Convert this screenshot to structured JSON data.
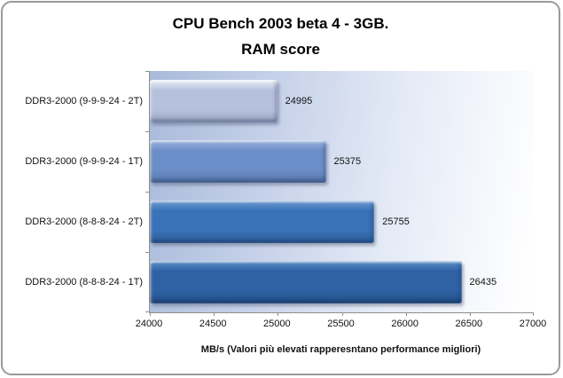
{
  "chart_data": {
    "type": "bar",
    "orientation": "horizontal",
    "title_line1": "CPU Bench 2003 beta 4 - 3GB.",
    "title_line2": "RAM score",
    "categories": [
      "DDR3-2000 (9-9-9-24 - 2T)",
      "DDR3-2000 (9-9-9-24 - 1T)",
      "DDR3-2000 (8-8-8-24 - 2T)",
      "DDR3-2000 (8-8-8-24 - 1T)"
    ],
    "values": [
      24995,
      25375,
      25755,
      26435
    ],
    "bar_styles": [
      {
        "top": "#eef1f8",
        "mid": "#b6c2dd",
        "bottom": "#97a5c4"
      },
      {
        "top": "#9db4dd",
        "mid": "#6c8ec8",
        "bottom": "#5474a8"
      },
      {
        "top": "#6f9bd1",
        "mid": "#3a72b8",
        "bottom": "#2b5c97"
      },
      {
        "top": "#5c8ec6",
        "mid": "#2f62a4",
        "bottom": "#224e85"
      }
    ],
    "xlabel": "MB/s (Valori più  elevati rapperesntano performance migliori)",
    "xlim": [
      24000,
      27000
    ],
    "xticks": [
      24000,
      24500,
      25000,
      25500,
      26000,
      26500,
      27000
    ],
    "grid": false,
    "legend": "none",
    "value_labels_shown": true,
    "plot_bg_left_color": "#a9bada",
    "plot_bg_right_color": "#ffffff",
    "frame_border_color": "#9a9a9a"
  }
}
